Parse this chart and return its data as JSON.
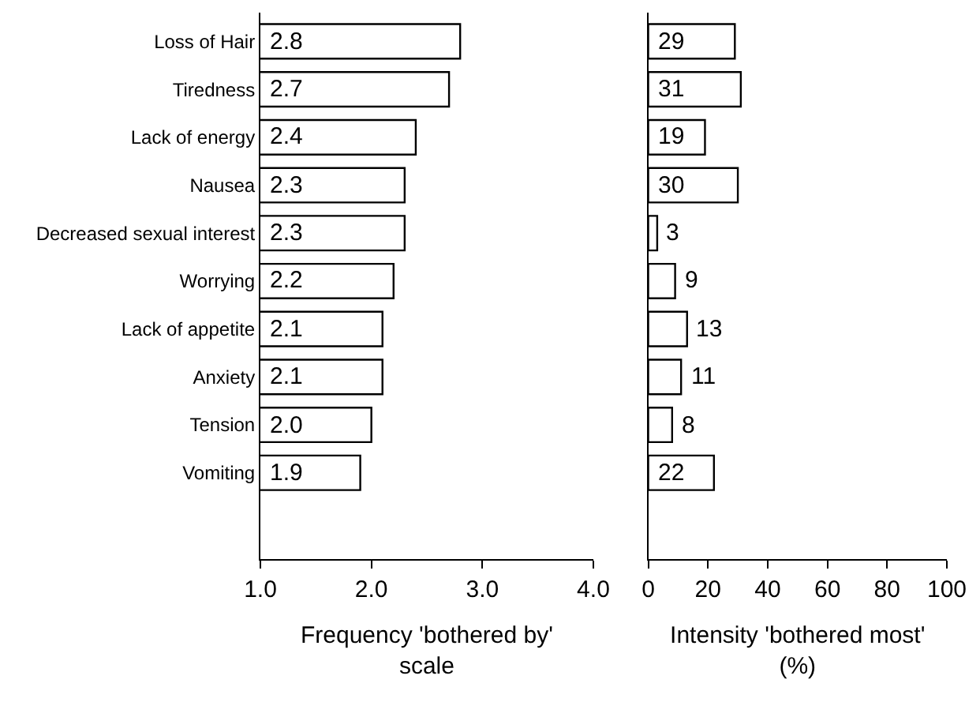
{
  "chart_data": [
    {
      "type": "bar",
      "orientation": "horizontal",
      "categories": [
        "Loss of Hair",
        "Tiredness",
        "Lack of energy",
        "Nausea",
        "Decreased sexual interest",
        "Worrying",
        "Lack of appetite",
        "Anxiety",
        "Tension",
        "Vomiting"
      ],
      "values": [
        2.8,
        2.7,
        2.4,
        2.3,
        2.3,
        2.2,
        2.1,
        2.1,
        2.0,
        1.9
      ],
      "value_labels": [
        "2.8",
        "2.7",
        "2.4",
        "2.3",
        "2.3",
        "2.2",
        "2.1",
        "2.1",
        "2.0",
        "1.9"
      ],
      "color": "#ffffff",
      "xlim": [
        1,
        4
      ],
      "xticks": [
        {
          "value": 1,
          "label": "1.0"
        },
        {
          "value": 2,
          "label": "2.0"
        },
        {
          "value": 3,
          "label": "3.0"
        },
        {
          "value": 4,
          "label": "4.0"
        }
      ],
      "xlabel": "Frequency 'bothered by' scale"
    },
    {
      "type": "bar",
      "orientation": "horizontal",
      "categories": [
        null,
        null,
        null,
        null,
        null,
        null,
        null,
        null,
        null,
        null
      ],
      "values": [
        29,
        31,
        19,
        30,
        3,
        9,
        13,
        11,
        8,
        22
      ],
      "value_labels": [
        "29",
        "31",
        "19",
        "30",
        "3",
        "9",
        "13",
        "11",
        "8",
        "22"
      ],
      "color": "#ffffff",
      "xlim": [
        0,
        100
      ],
      "xticks": [
        0,
        20,
        40,
        60,
        80,
        100
      ],
      "xlabel": "Intensity 'bothered most' (%)",
      "tick_labels": "x"
    }
  ]
}
